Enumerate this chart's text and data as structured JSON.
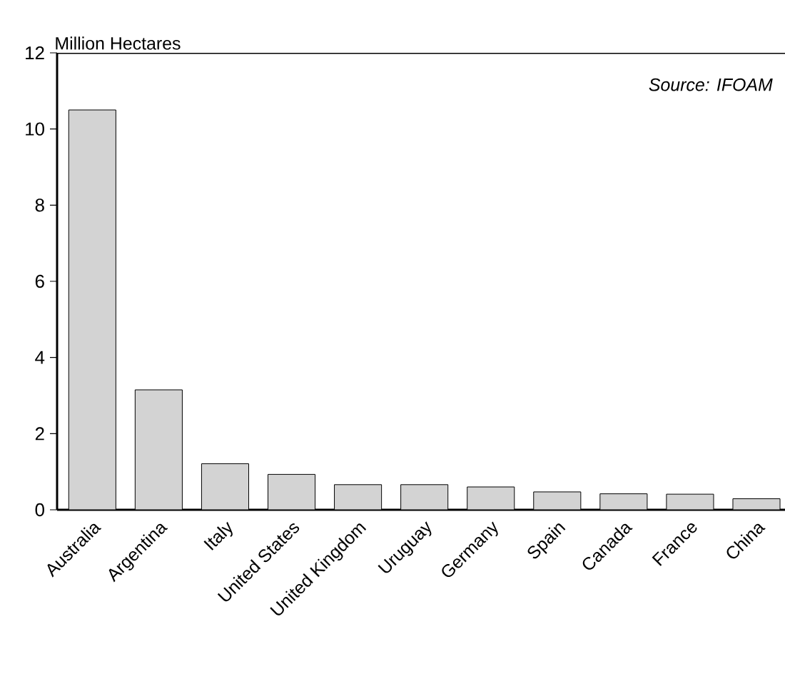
{
  "chart_data": {
    "type": "bar",
    "ylabel": "Million Hectares",
    "annotations": [
      "Source: IFOAM"
    ],
    "categories": [
      "Australia",
      "Argentina",
      "Italy",
      "United States",
      "United Kingdom",
      "Uruguay",
      "Germany",
      "Spain",
      "Canada",
      "France",
      "China"
    ],
    "values": [
      10.5,
      3.15,
      1.21,
      0.93,
      0.66,
      0.66,
      0.6,
      0.47,
      0.42,
      0.41,
      0.29
    ],
    "color": "#d3d3d3",
    "ylim": [
      0,
      12
    ],
    "yticks": [
      0,
      2,
      4,
      6,
      8,
      10,
      12
    ]
  }
}
